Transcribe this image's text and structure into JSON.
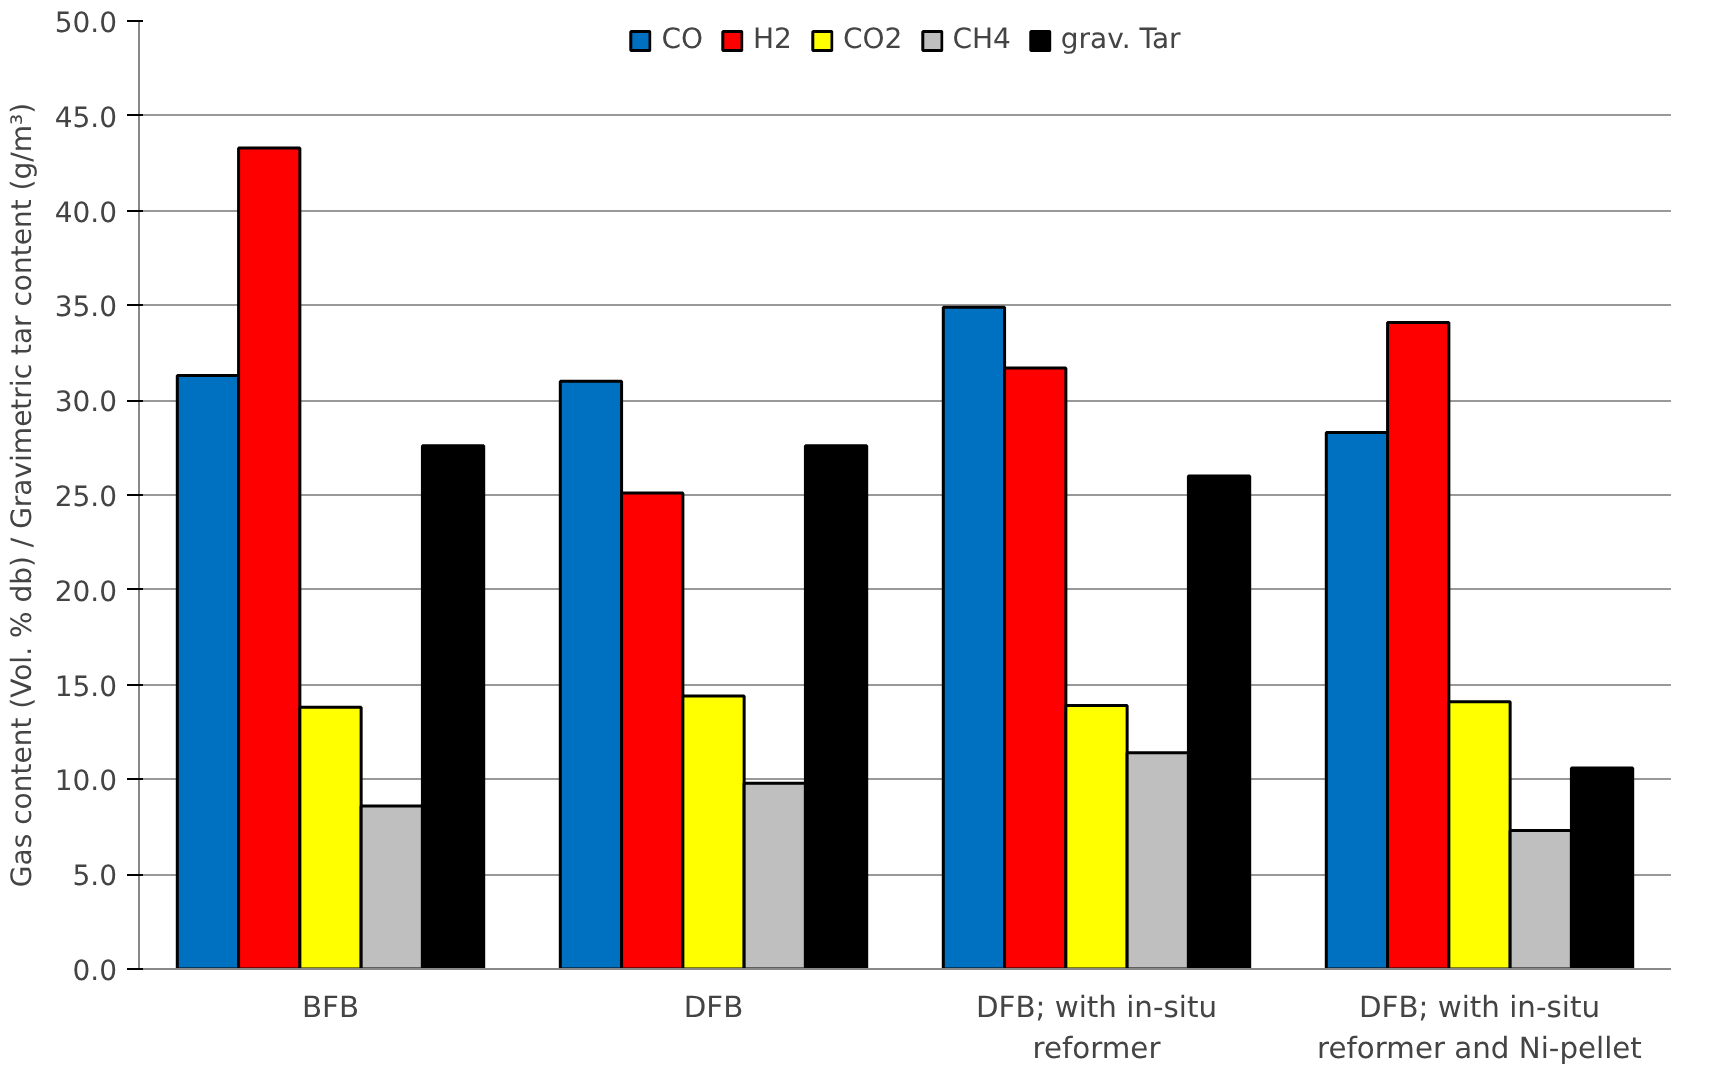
{
  "chart_data": {
    "type": "bar",
    "categories": [
      "BFB",
      "DFB",
      "DFB; with in-situ reformer",
      "DFB; with in-situ reformer and Ni-pellet"
    ],
    "ylabel": "Gas content (Vol. % db) / Gravimetric tar content (g/m³)",
    "series": [
      {
        "name": "CO",
        "color": "#0070c0",
        "values": [
          31.3,
          31.0,
          34.9,
          28.3
        ]
      },
      {
        "name": "H2",
        "color": "#ff0000",
        "values": [
          43.3,
          25.1,
          31.7,
          34.1
        ]
      },
      {
        "name": "CO2",
        "color": "#ffff00",
        "values": [
          13.8,
          14.4,
          13.9,
          14.1
        ]
      },
      {
        "name": "CH4",
        "color": "#bfbfbf",
        "values": [
          8.6,
          9.8,
          11.4,
          7.3
        ]
      },
      {
        "name": "grav. Tar",
        "color": "#000000",
        "values": [
          27.6,
          27.6,
          26.0,
          10.6
        ]
      }
    ],
    "ylim": [
      0,
      50
    ],
    "yticks": [
      {
        "value": 0,
        "label": "0.0"
      },
      {
        "value": 5,
        "label": "5.0"
      },
      {
        "value": 10,
        "label": "10.0"
      },
      {
        "value": 15,
        "label": "15.0"
      },
      {
        "value": 20,
        "label": "20.0"
      },
      {
        "value": 25,
        "label": "25.0"
      },
      {
        "value": 30,
        "label": "30.0"
      },
      {
        "value": 35,
        "label": "35.0"
      },
      {
        "value": 40,
        "label": "40.0"
      },
      {
        "value": 45,
        "label": "45.0"
      },
      {
        "value": 50,
        "label": "50.0"
      }
    ],
    "grid": "y",
    "legend": "top"
  }
}
